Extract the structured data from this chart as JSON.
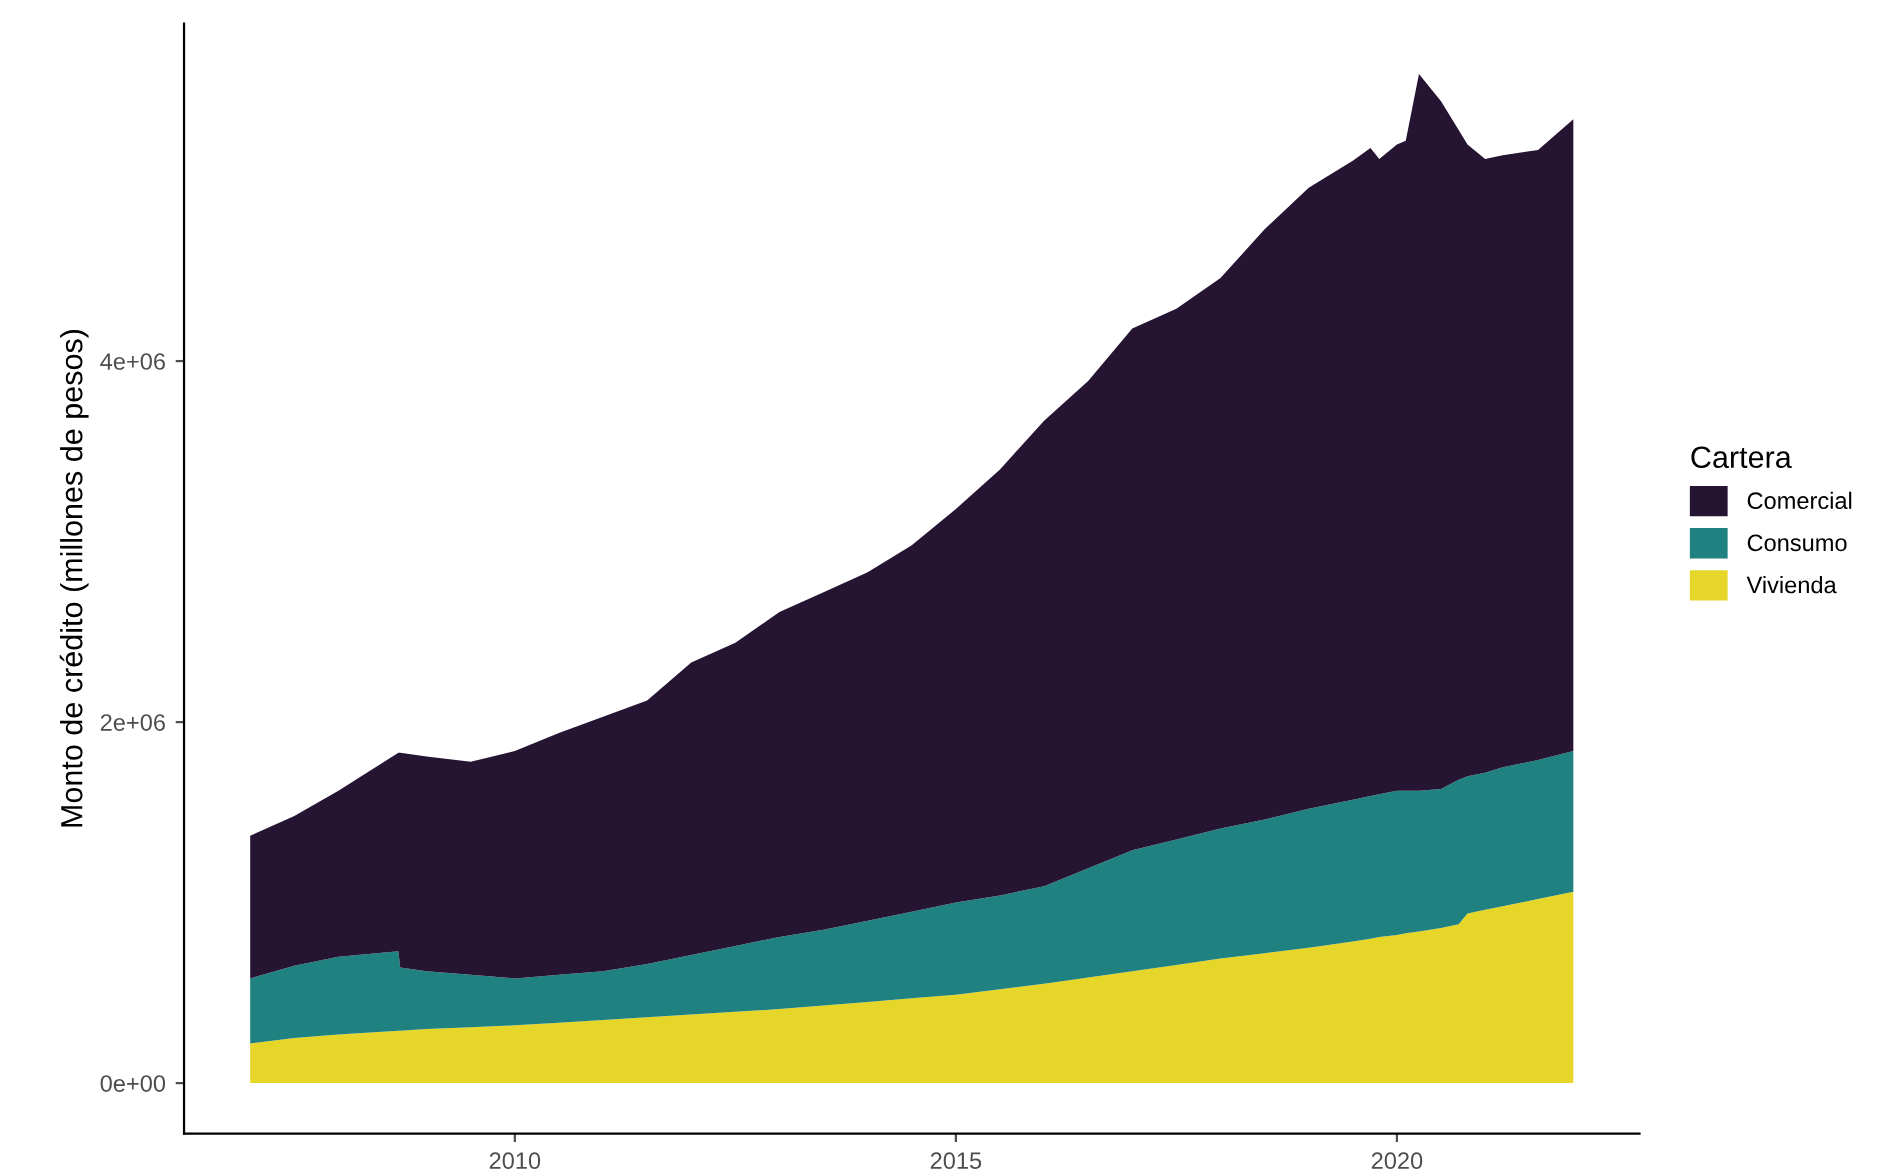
{
  "chart_data": {
    "type": "area",
    "stacked": true,
    "ylabel": "Monto de crédito (millones de pesos)",
    "legend_title": "Cartera",
    "legend": "right",
    "grid": false,
    "x": [
      2007,
      2007.5,
      2008,
      2008.68,
      2008.7,
      2009,
      2009.5,
      2010,
      2010.5,
      2011,
      2011.5,
      2012,
      2012.5,
      2013,
      2013.5,
      2014,
      2014.5,
      2015,
      2015.5,
      2016,
      2016.5,
      2017,
      2017.5,
      2018,
      2018.5,
      2019,
      2019.5,
      2019.7,
      2019.8,
      2020,
      2020.1,
      2020.25,
      2020.5,
      2020.7,
      2020.8,
      2021,
      2021.2,
      2021.6,
      2022
    ],
    "xlim": [
      2006.25,
      2022.75
    ],
    "xticks": [
      2010,
      2015,
      2020
    ],
    "ylim": [
      -280000,
      5870000
    ],
    "yticks": [
      {
        "value": 0,
        "label": "0e+00"
      },
      {
        "value": 2000000,
        "label": "2e+06"
      },
      {
        "value": 4000000,
        "label": "4e+06"
      }
    ],
    "series": [
      {
        "name": "Vivienda",
        "color": "#e6d62a",
        "values": [
          220000,
          250000,
          270000,
          290000,
          290000,
          300000,
          310000,
          320000,
          335000,
          350000,
          365000,
          380000,
          395000,
          410000,
          430000,
          450000,
          470000,
          490000,
          520000,
          550000,
          585000,
          620000,
          655000,
          690000,
          720000,
          750000,
          785000,
          800000,
          810000,
          820000,
          830000,
          840000,
          860000,
          880000,
          940000,
          960000,
          980000,
          1020000,
          1060000
        ]
      },
      {
        "name": "Consumo",
        "color": "#1f8281",
        "values": [
          360000,
          400000,
          430000,
          440000,
          350000,
          320000,
          290000,
          260000,
          265000,
          270000,
          295000,
          330000,
          365000,
          400000,
          420000,
          450000,
          480000,
          510000,
          520000,
          540000,
          605000,
          670000,
          695000,
          720000,
          740000,
          770000,
          785000,
          790000,
          790000,
          800000,
          790000,
          780000,
          770000,
          800000,
          760000,
          760000,
          770000,
          770000,
          780000
        ]
      },
      {
        "name": "Comercial",
        "color": "#261433",
        "values": [
          790000,
          830000,
          920000,
          1100000,
          1190000,
          1190000,
          1180000,
          1260000,
          1340000,
          1410000,
          1460000,
          1620000,
          1680000,
          1800000,
          1870000,
          1930000,
          2030000,
          2180000,
          2360000,
          2580000,
          2700000,
          2890000,
          2940000,
          3050000,
          3270000,
          3440000,
          3540000,
          3590000,
          3520000,
          3580000,
          3600000,
          3970000,
          3810000,
          3600000,
          3500000,
          3400000,
          3390000,
          3380000,
          3500000
        ]
      }
    ]
  }
}
